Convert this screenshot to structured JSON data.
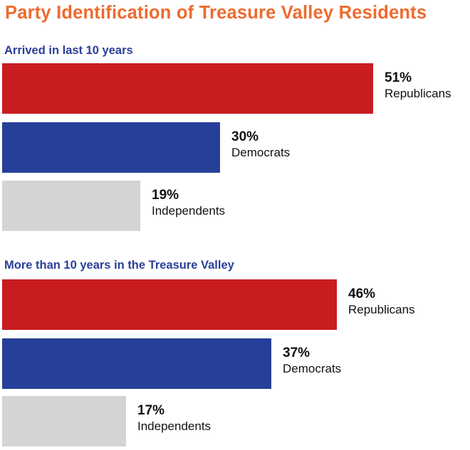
{
  "title": "Party Identification of Treasure Valley Residents",
  "colors": {
    "title": "#ee6b2f",
    "group_title": "#2a3f98",
    "Republicans": "#c91c21",
    "Democrats": "#263f98",
    "Independents": "#d3d4d6"
  },
  "chart_data": [
    {
      "type": "bar",
      "orientation": "horizontal",
      "title": "Arrived in last 10 years",
      "categories": [
        "Republicans",
        "Democrats",
        "Independents"
      ],
      "values": [
        51,
        30,
        19
      ],
      "value_labels": [
        "51%",
        "30%",
        "19%"
      ],
      "unit": "%",
      "xlim": [
        0,
        100
      ],
      "grid": false
    },
    {
      "type": "bar",
      "orientation": "horizontal",
      "title": "More than 10 years in the Treasure Valley",
      "categories": [
        "Republicans",
        "Democrats",
        "Independents"
      ],
      "values": [
        46,
        37,
        17
      ],
      "value_labels": [
        "46%",
        "37%",
        "17%"
      ],
      "unit": "%",
      "xlim": [
        0,
        100
      ],
      "grid": false
    }
  ]
}
